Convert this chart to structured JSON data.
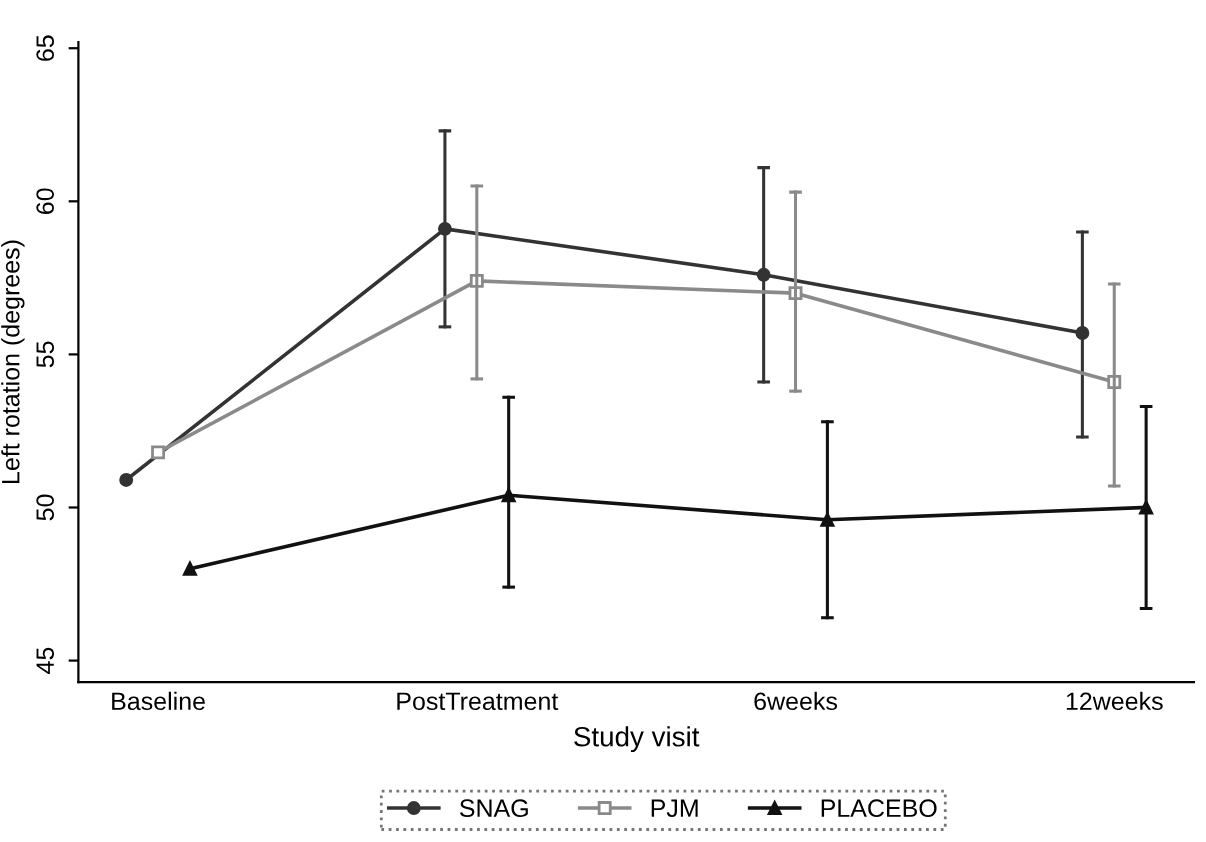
{
  "chart_data": {
    "type": "line",
    "xlabel": "Study visit",
    "ylabel": "Left rotation (degrees)",
    "categories": [
      "Baseline",
      "PostTreatment",
      "6weeks",
      "12weeks"
    ],
    "series": [
      {
        "name": "SNAG",
        "color": "#333333",
        "marker": "circle",
        "values": [
          50.9,
          59.1,
          57.6,
          55.7
        ],
        "errors": [
          null,
          [
            55.9,
            62.3
          ],
          [
            54.1,
            61.1
          ],
          [
            52.3,
            59.0
          ]
        ]
      },
      {
        "name": "PJM",
        "color": "#8a8a8a",
        "marker": "square",
        "values": [
          51.8,
          57.4,
          57.0,
          54.1
        ],
        "errors": [
          null,
          [
            54.2,
            60.5
          ],
          [
            53.8,
            60.3
          ],
          [
            50.7,
            57.3
          ]
        ]
      },
      {
        "name": "PLACEBO",
        "color": "#111111",
        "marker": "triangle",
        "values": [
          48.0,
          50.4,
          49.6,
          50.0
        ],
        "errors": [
          null,
          [
            47.4,
            53.6
          ],
          [
            46.4,
            52.8
          ],
          [
            46.7,
            53.3
          ]
        ]
      }
    ],
    "ylim": [
      44.3,
      65.2
    ],
    "yticks": [
      45,
      50,
      55,
      60,
      65
    ],
    "grid": false,
    "legend": "bottom"
  }
}
